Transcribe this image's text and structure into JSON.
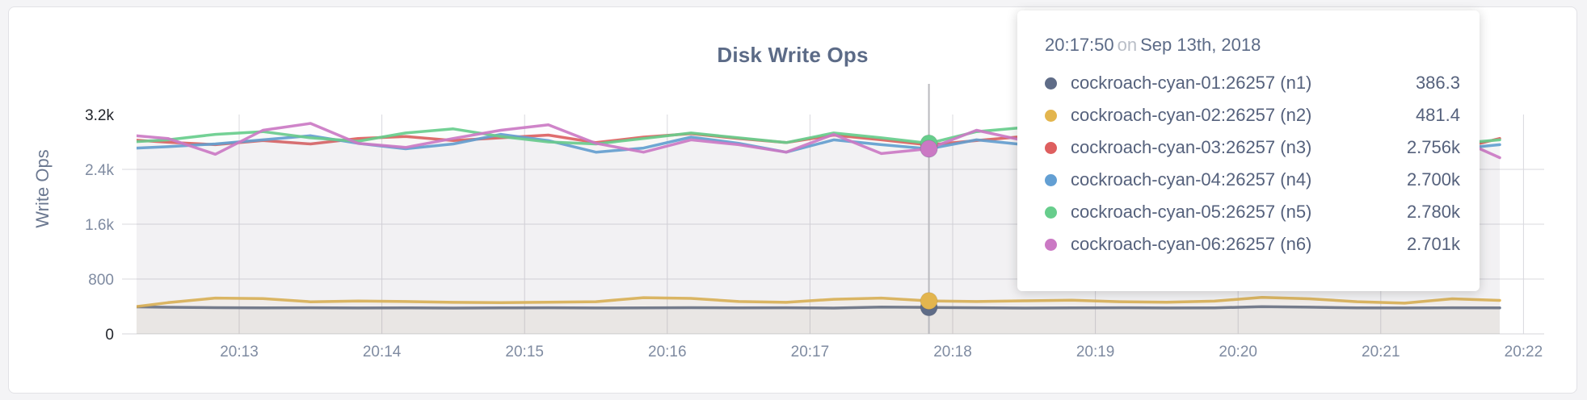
{
  "page": {
    "background": "#f4f4f6",
    "card_background": "#ffffff"
  },
  "chart": {
    "title": "Disk Write Ops",
    "ylabel": "Write Ops"
  },
  "tooltip": {
    "time": "20:17:50",
    "on_word": "on",
    "date": "Sep 13th, 2018",
    "rows": [
      {
        "name": "cockroach-cyan-01:26257 (n1)",
        "value": "386.3",
        "color": "#5f6c87"
      },
      {
        "name": "cockroach-cyan-02:26257 (n2)",
        "value": "481.4",
        "color": "#e3b54e"
      },
      {
        "name": "cockroach-cyan-03:26257 (n3)",
        "value": "2.756k",
        "color": "#de5f5f"
      },
      {
        "name": "cockroach-cyan-04:26257 (n4)",
        "value": "2.700k",
        "color": "#639fd3"
      },
      {
        "name": "cockroach-cyan-05:26257 (n5)",
        "value": "2.780k",
        "color": "#67cd8c"
      },
      {
        "name": "cockroach-cyan-06:26257 (n6)",
        "value": "2.701k",
        "color": "#cb79c4"
      }
    ]
  },
  "chart_data": {
    "type": "line",
    "title": "Disk Write Ops",
    "ylabel": "Write Ops",
    "ylim": [
      0,
      3400
    ],
    "grid": true,
    "x_ticks": [
      "20:13",
      "20:14",
      "20:15",
      "20:16",
      "20:17",
      "20:18",
      "20:19",
      "20:20",
      "20:21",
      "20:22"
    ],
    "y_ticks": [
      {
        "label": "3.2k",
        "value": 3200,
        "emphasis": true,
        "gridline": false
      },
      {
        "label": "2.4k",
        "value": 2400,
        "emphasis": false,
        "gridline": true
      },
      {
        "label": "1.6k",
        "value": 1600,
        "emphasis": false,
        "gridline": true
      },
      {
        "label": "800",
        "value": 800,
        "emphasis": false,
        "gridline": true
      },
      {
        "label": "0",
        "value": 0,
        "emphasis": true,
        "gridline": false
      }
    ],
    "x_start_time": "20:12:10",
    "x_step_seconds": 20,
    "hover_index": 17,
    "hover_time": "20:17:50",
    "series": [
      {
        "name": "cockroach-cyan-01:26257 (n1)",
        "color": "#5f6c87",
        "values": [
          396,
          388,
          382,
          379,
          381,
          378,
          380,
          377,
          379,
          381,
          378,
          380,
          382,
          379,
          381,
          377,
          392,
          386.3,
          381,
          377,
          379,
          381,
          378,
          380,
          396,
          389,
          380,
          378,
          381,
          379
        ]
      },
      {
        "name": "cockroach-cyan-02:26257 (n2)",
        "color": "#e3b54e",
        "values": [
          368,
          455,
          522,
          515,
          468,
          480,
          472,
          460,
          455,
          462,
          470,
          528,
          518,
          472,
          460,
          505,
          522,
          481.4,
          472,
          482,
          492,
          470,
          462,
          478,
          532,
          512,
          470,
          448,
          512,
          488
        ]
      },
      {
        "name": "cockroach-cyan-03:26257 (n3)",
        "color": "#de5f5f",
        "values": [
          2840,
          2795,
          2760,
          2820,
          2770,
          2850,
          2880,
          2820,
          2860,
          2900,
          2790,
          2870,
          2920,
          2850,
          2790,
          2900,
          2830,
          2756,
          2820,
          2880,
          2830,
          2770,
          2850,
          2900,
          2830,
          2780,
          2730,
          2960,
          2680,
          2850
        ]
      },
      {
        "name": "cockroach-cyan-04:26257 (n4)",
        "color": "#639fd3",
        "values": [
          2700,
          2730,
          2770,
          2830,
          2890,
          2780,
          2700,
          2770,
          2910,
          2820,
          2650,
          2710,
          2870,
          2780,
          2650,
          2830,
          2760,
          2700,
          2830,
          2760,
          2890,
          2950,
          2820,
          2760,
          2700,
          2860,
          2780,
          2820,
          2690,
          2760
        ]
      },
      {
        "name": "cockroach-cyan-05:26257 (n5)",
        "color": "#67cd8c",
        "values": [
          2790,
          2830,
          2910,
          2950,
          2860,
          2810,
          2930,
          2990,
          2880,
          2800,
          2770,
          2850,
          2930,
          2860,
          2790,
          2930,
          2860,
          2780,
          2950,
          3010,
          2880,
          2820,
          2900,
          2840,
          2930,
          2860,
          2800,
          2890,
          2770,
          2830
        ]
      },
      {
        "name": "cockroach-cyan-06:26257 (n6)",
        "color": "#cb79c4",
        "values": [
          2910,
          2850,
          2620,
          2970,
          3070,
          2780,
          2720,
          2850,
          2970,
          3050,
          2780,
          2650,
          2830,
          2760,
          2650,
          2910,
          2630,
          2701,
          2970,
          2820,
          2700,
          2650,
          2910,
          2760,
          2650,
          2830,
          2700,
          3090,
          2880,
          2570
        ]
      }
    ]
  }
}
